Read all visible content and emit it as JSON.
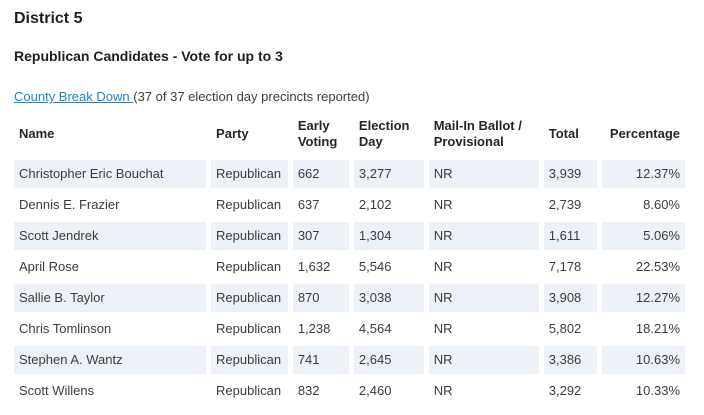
{
  "page": {
    "district_title": "District 5",
    "contest_title": "Republican Candidates - Vote for up to 3",
    "breakdown_link_label": "County Break Down ",
    "breakdown_note": "(37 of 37 election day precincts reported)"
  },
  "colors": {
    "link_blue": "#1e87c7",
    "row_stripe": "#edf2f9",
    "text_body": "#3c3c3c",
    "text_heading": "#1f1f1f",
    "page_bg": "#ffffff"
  },
  "table": {
    "columns": [
      {
        "label": "Name"
      },
      {
        "label": "Party"
      },
      {
        "label": "Early Voting"
      },
      {
        "label": "Election Day"
      },
      {
        "label": "Mail-In Ballot / Provisional"
      },
      {
        "label": "Total"
      },
      {
        "label": "Percentage"
      }
    ],
    "rows": [
      {
        "name": "Christopher Eric Bouchat",
        "party": "Republican",
        "early_voting": "662",
        "election_day": "3,277",
        "mail_in": "NR",
        "total": "3,939",
        "percentage": "12.37%"
      },
      {
        "name": "Dennis E. Frazier",
        "party": "Republican",
        "early_voting": "637",
        "election_day": "2,102",
        "mail_in": "NR",
        "total": "2,739",
        "percentage": "8.60%"
      },
      {
        "name": "Scott Jendrek",
        "party": "Republican",
        "early_voting": "307",
        "election_day": "1,304",
        "mail_in": "NR",
        "total": "1,611",
        "percentage": "5.06%"
      },
      {
        "name": "April Rose",
        "party": "Republican",
        "early_voting": "1,632",
        "election_day": "5,546",
        "mail_in": "NR",
        "total": "7,178",
        "percentage": "22.53%"
      },
      {
        "name": "Sallie B. Taylor",
        "party": "Republican",
        "early_voting": "870",
        "election_day": "3,038",
        "mail_in": "NR",
        "total": "3,908",
        "percentage": "12.27%"
      },
      {
        "name": "Chris Tomlinson",
        "party": "Republican",
        "early_voting": "1,238",
        "election_day": "4,564",
        "mail_in": "NR",
        "total": "5,802",
        "percentage": "18.21%"
      },
      {
        "name": "Stephen A. Wantz",
        "party": "Republican",
        "early_voting": "741",
        "election_day": "2,645",
        "mail_in": "NR",
        "total": "3,386",
        "percentage": "10.63%"
      },
      {
        "name": "Scott Willens",
        "party": "Republican",
        "early_voting": "832",
        "election_day": "2,460",
        "mail_in": "NR",
        "total": "3,292",
        "percentage": "10.33%"
      }
    ]
  }
}
